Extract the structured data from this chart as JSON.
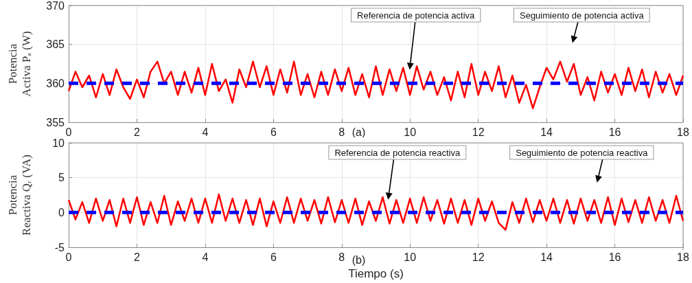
{
  "chart_data": [
    {
      "type": "line",
      "ylabel": "Potencia\nActiva Pₐ (W)",
      "xlim": [
        0,
        18
      ],
      "xticks": [
        0,
        2,
        4,
        6,
        8,
        10,
        12,
        14,
        16,
        18
      ],
      "ylim": [
        355,
        370
      ],
      "yticks": [
        355,
        360,
        365,
        370
      ],
      "grid": true,
      "marker": "none",
      "annotations": [
        "Referencia de potencia activa",
        "Seguimiento de potencia activa",
        "(a)"
      ],
      "series": [
        {
          "color": "#ff0000",
          "line_style": "solid",
          "x": [
            0,
            0.2,
            0.4,
            0.6,
            0.8,
            1,
            1.2,
            1.4,
            1.6,
            1.8,
            2,
            2.2,
            2.4,
            2.6,
            2.8,
            3,
            3.2,
            3.4,
            3.6,
            3.8,
            4,
            4.2,
            4.4,
            4.6,
            4.8,
            5,
            5.2,
            5.4,
            5.6,
            5.8,
            6,
            6.2,
            6.4,
            6.6,
            6.8,
            7,
            7.2,
            7.4,
            7.6,
            7.8,
            8,
            8.2,
            8.4,
            8.6,
            8.8,
            9,
            9.2,
            9.4,
            9.6,
            9.8,
            10,
            10.2,
            10.4,
            10.6,
            10.8,
            11,
            11.2,
            11.4,
            11.6,
            11.8,
            12,
            12.2,
            12.4,
            12.6,
            12.8,
            13,
            13.2,
            13.4,
            13.6,
            13.8,
            14,
            14.2,
            14.4,
            14.6,
            14.8,
            15,
            15.2,
            15.4,
            15.6,
            15.8,
            16,
            16.2,
            16.4,
            16.6,
            16.8,
            17,
            17.2,
            17.4,
            17.6,
            17.8,
            18
          ],
          "values": [
            359,
            361.5,
            359.5,
            361,
            358.2,
            361.2,
            358.5,
            361.8,
            359.5,
            358,
            360.5,
            358.2,
            361.5,
            362.8,
            360,
            361.5,
            358.5,
            361.5,
            358.8,
            362,
            358.5,
            362.5,
            359,
            360.5,
            357.5,
            361.8,
            359.5,
            362.8,
            359.5,
            362.2,
            358.5,
            361.8,
            358.8,
            362.8,
            358.5,
            361.2,
            358.2,
            361.5,
            358.5,
            361.8,
            359,
            362,
            358.5,
            361.2,
            358.2,
            362.2,
            358.5,
            361.8,
            359,
            362,
            358.5,
            362.2,
            359.2,
            361.5,
            358.5,
            360.8,
            357.8,
            361.5,
            358.2,
            362.5,
            358.5,
            361.5,
            359,
            362.2,
            358.2,
            361,
            357.5,
            359.8,
            356.8,
            359.5,
            362,
            360.5,
            362.8,
            360.2,
            362.5,
            358.5,
            360.8,
            357.8,
            361.5,
            358.8,
            361.2,
            358.5,
            362,
            359,
            361.8,
            358.2,
            361.5,
            358.8,
            361.2,
            358.5,
            361
          ]
        },
        {
          "color": "#0000ff",
          "line_style": "dashed",
          "x": [
            0,
            18
          ],
          "values": [
            360,
            360
          ]
        }
      ]
    },
    {
      "type": "line",
      "xlabel": "Tiempo (s)",
      "ylabel": "Potencia\nReactiva Qᵣ (VA)",
      "xlim": [
        0,
        18
      ],
      "xticks": [
        0,
        2,
        4,
        6,
        8,
        10,
        12,
        14,
        16,
        18
      ],
      "ylim": [
        -5,
        10
      ],
      "yticks": [
        -5,
        0,
        5,
        10
      ],
      "grid": true,
      "marker": "none",
      "annotations": [
        "Referencia de potencia reactiva",
        "Seguimiento de potencia reactiva",
        "(b)"
      ],
      "series": [
        {
          "color": "#ff0000",
          "line_style": "solid",
          "x": [
            0,
            0.2,
            0.4,
            0.6,
            0.8,
            1,
            1.2,
            1.4,
            1.6,
            1.8,
            2,
            2.2,
            2.4,
            2.6,
            2.8,
            3,
            3.2,
            3.4,
            3.6,
            3.8,
            4,
            4.2,
            4.4,
            4.6,
            4.8,
            5,
            5.2,
            5.4,
            5.6,
            5.8,
            6,
            6.2,
            6.4,
            6.6,
            6.8,
            7,
            7.2,
            7.4,
            7.6,
            7.8,
            8,
            8.2,
            8.4,
            8.6,
            8.8,
            9,
            9.2,
            9.4,
            9.6,
            9.8,
            10,
            10.2,
            10.4,
            10.6,
            10.8,
            11,
            11.2,
            11.4,
            11.6,
            11.8,
            12,
            12.2,
            12.4,
            12.6,
            12.8,
            13,
            13.2,
            13.4,
            13.6,
            13.8,
            14,
            14.2,
            14.4,
            14.6,
            14.8,
            15,
            15.2,
            15.4,
            15.6,
            15.8,
            16,
            16.2,
            16.4,
            16.6,
            16.8,
            17,
            17.2,
            17.4,
            17.6,
            17.8,
            18
          ],
          "values": [
            1.8,
            -1,
            1.5,
            -1.5,
            2,
            -1.2,
            1.8,
            -2,
            2,
            -1.5,
            2.2,
            -1.8,
            1.5,
            -1.5,
            2.4,
            -1.8,
            1.6,
            -1.2,
            2,
            -1.5,
            2,
            -1.5,
            2.6,
            -1.2,
            2,
            -1.5,
            1.8,
            -1.8,
            2,
            -2,
            1.6,
            -1.5,
            2.2,
            -1.5,
            2,
            -1.2,
            1.8,
            -1.6,
            2.2,
            -1.4,
            1.8,
            -1.5,
            2,
            -1.8,
            1.6,
            -1.2,
            2.2,
            -1.6,
            1.8,
            -1.5,
            2,
            -1.5,
            2.2,
            -1.2,
            1.8,
            -1.6,
            2,
            -1.5,
            1.8,
            -1.8,
            2,
            -1.2,
            1.6,
            -1.5,
            -2.5,
            1.5,
            -1.5,
            2,
            -1.4,
            1.8,
            -1.2,
            2,
            -1.5,
            1.8,
            -1.6,
            2,
            -1.2,
            1.8,
            -1.5,
            2.2,
            -1.8,
            2,
            -1.4,
            1.8,
            -1.5,
            2.2,
            -1.2,
            1.8,
            -1.5,
            2.4,
            -1.2
          ]
        },
        {
          "color": "#0000ff",
          "line_style": "dashed",
          "x": [
            0,
            18
          ],
          "values": [
            0,
            0
          ]
        }
      ]
    }
  ]
}
